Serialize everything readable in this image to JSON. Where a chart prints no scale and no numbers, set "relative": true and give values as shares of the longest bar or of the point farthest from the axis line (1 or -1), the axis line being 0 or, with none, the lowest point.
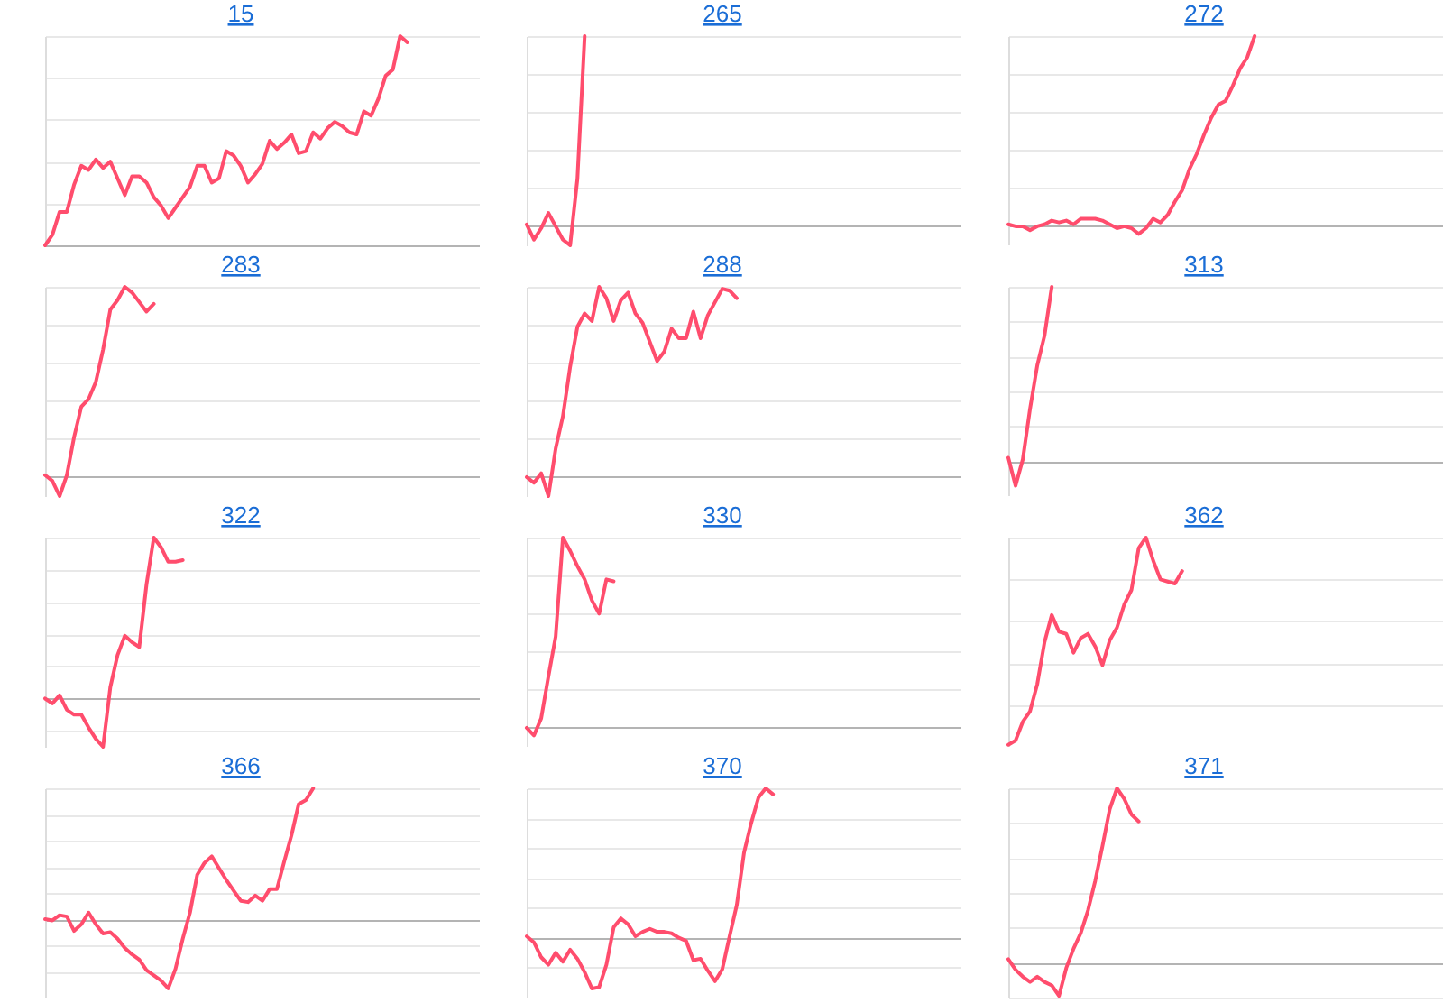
{
  "chart_data": [
    {
      "type": "line",
      "title": "15",
      "relative": true,
      "grid": "y",
      "tick_labels": false,
      "color": "#ff4d6d",
      "categories": [
        null,
        null,
        null,
        null,
        null,
        null,
        null,
        null,
        null,
        null,
        null,
        null,
        null,
        null,
        null,
        null,
        null,
        null,
        null,
        null,
        null,
        null,
        null,
        null,
        null,
        null,
        null,
        null,
        null,
        null,
        null,
        null,
        null,
        null,
        null,
        null,
        null,
        null,
        null,
        null,
        null,
        null,
        null,
        null,
        null,
        null,
        null,
        null,
        null,
        null,
        null,
        null,
        null,
        null,
        null,
        null,
        null,
        null,
        null,
        null,
        null
      ],
      "values": [
        0,
        0.05,
        0.16,
        0.16,
        0.29,
        0.38,
        0.36,
        0.41,
        0.37,
        0.4,
        0.32,
        0.24,
        0.33,
        0.33,
        0.3,
        0.23,
        0.19,
        0.13,
        0.18,
        0.23,
        0.28,
        0.38,
        0.38,
        0.3,
        0.32,
        0.45,
        0.43,
        0.38,
        0.3,
        0.34,
        0.39,
        0.5,
        0.46,
        0.49,
        0.53,
        0.44,
        0.45,
        0.54,
        0.51,
        0.56,
        0.59,
        0.57,
        0.54,
        0.53,
        0.64,
        0.62,
        0.7,
        0.81,
        0.84,
        1,
        0.97,
        null,
        null,
        null,
        null,
        null,
        null,
        null,
        null,
        null,
        null
      ]
    },
    {
      "type": "line",
      "title": "265",
      "relative": true,
      "grid": "y",
      "tick_labels": false,
      "color": "#ff4d6d",
      "categories": [
        null,
        null,
        null,
        null,
        null,
        null,
        null,
        null,
        null,
        null,
        null,
        null,
        null,
        null,
        null,
        null,
        null,
        null,
        null,
        null,
        null,
        null,
        null,
        null,
        null,
        null,
        null,
        null,
        null,
        null,
        null,
        null,
        null,
        null,
        null,
        null,
        null,
        null,
        null,
        null,
        null,
        null,
        null,
        null,
        null,
        null,
        null,
        null,
        null,
        null,
        null,
        null,
        null,
        null,
        null,
        null,
        null,
        null,
        null,
        null,
        null
      ],
      "values": [
        0.01,
        -0.07,
        -0.01,
        0.07,
        0,
        -0.07,
        -0.1,
        0.25,
        1,
        null,
        null,
        null,
        null,
        null,
        null,
        null,
        null,
        null,
        null,
        null,
        null,
        null,
        null,
        null,
        null,
        null,
        null,
        null,
        null,
        null,
        null,
        null,
        null,
        null,
        null,
        null,
        null,
        null,
        null,
        null,
        null,
        null,
        null,
        null,
        null,
        null,
        null,
        null,
        null,
        null,
        null,
        null,
        null,
        null,
        null,
        null,
        null,
        null,
        null,
        null,
        null
      ]
    },
    {
      "type": "line",
      "title": "272",
      "relative": true,
      "grid": "y",
      "tick_labels": false,
      "color": "#ff4d6d",
      "categories": [
        null,
        null,
        null,
        null,
        null,
        null,
        null,
        null,
        null,
        null,
        null,
        null,
        null,
        null,
        null,
        null,
        null,
        null,
        null,
        null,
        null,
        null,
        null,
        null,
        null,
        null,
        null,
        null,
        null,
        null,
        null,
        null,
        null,
        null,
        null,
        null,
        null,
        null,
        null,
        null,
        null,
        null,
        null,
        null,
        null,
        null,
        null,
        null,
        null,
        null,
        null,
        null,
        null,
        null,
        null,
        null,
        null,
        null,
        null,
        null,
        null
      ],
      "values": [
        0.01,
        0,
        0,
        -0.02,
        0,
        0.01,
        0.03,
        0.02,
        0.03,
        0.01,
        0.04,
        0.04,
        0.04,
        0.03,
        0.01,
        -0.01,
        0,
        -0.01,
        -0.04,
        -0.01,
        0.04,
        0.02,
        0.06,
        0.13,
        0.19,
        0.3,
        0.38,
        0.48,
        0.57,
        0.64,
        0.66,
        0.74,
        0.83,
        0.89,
        1,
        null,
        null,
        null,
        null,
        null,
        null,
        null,
        null,
        null,
        null,
        null,
        null,
        null,
        null,
        null,
        null,
        null,
        null,
        null,
        null,
        null,
        null,
        null,
        null,
        null,
        null
      ]
    },
    {
      "type": "line",
      "title": "283",
      "relative": true,
      "grid": "y",
      "tick_labels": false,
      "color": "#ff4d6d",
      "categories": [
        null,
        null,
        null,
        null,
        null,
        null,
        null,
        null,
        null,
        null,
        null,
        null,
        null,
        null,
        null,
        null,
        null,
        null,
        null,
        null,
        null,
        null,
        null,
        null,
        null,
        null,
        null,
        null,
        null,
        null,
        null,
        null,
        null,
        null,
        null,
        null,
        null,
        null,
        null,
        null,
        null,
        null,
        null,
        null,
        null,
        null,
        null,
        null,
        null,
        null,
        null,
        null,
        null,
        null,
        null,
        null,
        null,
        null,
        null,
        null,
        null
      ],
      "values": [
        0.01,
        -0.02,
        -0.1,
        0.01,
        0.21,
        0.37,
        0.41,
        0.5,
        0.67,
        0.88,
        0.93,
        1,
        0.97,
        0.92,
        0.87,
        0.91,
        null,
        null,
        null,
        null,
        null,
        null,
        null,
        null,
        null,
        null,
        null,
        null,
        null,
        null,
        null,
        null,
        null,
        null,
        null,
        null,
        null,
        null,
        null,
        null,
        null,
        null,
        null,
        null,
        null,
        null,
        null,
        null,
        null,
        null,
        null,
        null,
        null,
        null,
        null,
        null,
        null,
        null,
        null,
        null,
        null
      ]
    },
    {
      "type": "line",
      "title": "288",
      "relative": true,
      "grid": "y",
      "tick_labels": false,
      "color": "#ff4d6d",
      "categories": [
        null,
        null,
        null,
        null,
        null,
        null,
        null,
        null,
        null,
        null,
        null,
        null,
        null,
        null,
        null,
        null,
        null,
        null,
        null,
        null,
        null,
        null,
        null,
        null,
        null,
        null,
        null,
        null,
        null,
        null,
        null,
        null,
        null,
        null,
        null,
        null,
        null,
        null,
        null,
        null,
        null,
        null,
        null,
        null,
        null,
        null,
        null,
        null,
        null,
        null,
        null,
        null,
        null,
        null,
        null,
        null,
        null,
        null,
        null,
        null,
        null
      ],
      "values": [
        0,
        -0.03,
        0.02,
        -0.1,
        0.15,
        0.32,
        0.58,
        0.79,
        0.86,
        0.82,
        1,
        0.94,
        0.82,
        0.93,
        0.97,
        0.86,
        0.81,
        0.71,
        0.61,
        0.66,
        0.78,
        0.73,
        0.73,
        0.87,
        0.73,
        0.85,
        0.92,
        0.99,
        0.98,
        0.94,
        null,
        null,
        null,
        null,
        null,
        null,
        null,
        null,
        null,
        null,
        null,
        null,
        null,
        null,
        null,
        null,
        null,
        null,
        null,
        null,
        null,
        null,
        null,
        null,
        null,
        null,
        null,
        null,
        null,
        null,
        null
      ]
    },
    {
      "type": "line",
      "title": "313",
      "relative": true,
      "grid": "y",
      "tick_labels": false,
      "color": "#ff4d6d",
      "categories": [
        null,
        null,
        null,
        null,
        null,
        null,
        null,
        null,
        null,
        null,
        null,
        null,
        null,
        null,
        null,
        null,
        null,
        null,
        null,
        null,
        null,
        null,
        null,
        null,
        null,
        null,
        null,
        null,
        null,
        null,
        null,
        null,
        null,
        null,
        null,
        null,
        null,
        null,
        null,
        null,
        null,
        null,
        null,
        null,
        null,
        null,
        null,
        null,
        null,
        null,
        null,
        null,
        null,
        null,
        null,
        null,
        null,
        null,
        null,
        null,
        null
      ],
      "values": [
        0.02,
        -0.14,
        0.01,
        0.3,
        0.55,
        0.72,
        1,
        null,
        null,
        null,
        null,
        null,
        null,
        null,
        null,
        null,
        null,
        null,
        null,
        null,
        null,
        null,
        null,
        null,
        null,
        null,
        null,
        null,
        null,
        null,
        null,
        null,
        null,
        null,
        null,
        null,
        null,
        null,
        null,
        null,
        null,
        null,
        null,
        null,
        null,
        null,
        null,
        null,
        null,
        null,
        null,
        null,
        null,
        null,
        null,
        null,
        null,
        null,
        null,
        null,
        null
      ]
    },
    {
      "type": "line",
      "title": "322",
      "relative": true,
      "grid": "y",
      "tick_labels": false,
      "color": "#ff4d6d",
      "categories": [
        null,
        null,
        null,
        null,
        null,
        null,
        null,
        null,
        null,
        null,
        null,
        null,
        null,
        null,
        null,
        null,
        null,
        null,
        null,
        null,
        null,
        null,
        null,
        null,
        null,
        null,
        null,
        null,
        null,
        null,
        null,
        null,
        null,
        null,
        null,
        null,
        null,
        null,
        null,
        null,
        null,
        null,
        null,
        null,
        null,
        null,
        null,
        null,
        null,
        null,
        null,
        null,
        null,
        null,
        null,
        null,
        null,
        null,
        null,
        null,
        null
      ],
      "values": [
        0,
        -0.03,
        0.02,
        -0.07,
        -0.1,
        -0.1,
        -0.18,
        -0.25,
        -0.3,
        0.07,
        0.27,
        0.39,
        0.35,
        0.32,
        0.71,
        1,
        0.94,
        0.85,
        0.85,
        0.86,
        null,
        null,
        null,
        null,
        null,
        null,
        null,
        null,
        null,
        null,
        null,
        null,
        null,
        null,
        null,
        null,
        null,
        null,
        null,
        null,
        null,
        null,
        null,
        null,
        null,
        null,
        null,
        null,
        null,
        null,
        null,
        null,
        null,
        null,
        null,
        null,
        null,
        null,
        null,
        null,
        null
      ]
    },
    {
      "type": "line",
      "title": "330",
      "relative": true,
      "grid": "y",
      "tick_labels": false,
      "color": "#ff4d6d",
      "categories": [
        null,
        null,
        null,
        null,
        null,
        null,
        null,
        null,
        null,
        null,
        null,
        null,
        null,
        null,
        null,
        null,
        null,
        null,
        null,
        null,
        null,
        null,
        null,
        null,
        null,
        null,
        null,
        null,
        null,
        null,
        null,
        null,
        null,
        null,
        null,
        null,
        null,
        null,
        null,
        null,
        null,
        null,
        null,
        null,
        null,
        null,
        null,
        null,
        null,
        null,
        null,
        null,
        null,
        null,
        null,
        null,
        null,
        null,
        null,
        null,
        null
      ],
      "values": [
        0,
        -0.04,
        0.05,
        0.27,
        0.48,
        1,
        0.93,
        0.85,
        0.78,
        0.67,
        0.6,
        0.78,
        0.77,
        null,
        null,
        null,
        null,
        null,
        null,
        null,
        null,
        null,
        null,
        null,
        null,
        null,
        null,
        null,
        null,
        null,
        null,
        null,
        null,
        null,
        null,
        null,
        null,
        null,
        null,
        null,
        null,
        null,
        null,
        null,
        null,
        null,
        null,
        null,
        null,
        null,
        null,
        null,
        null,
        null,
        null,
        null,
        null,
        null,
        null,
        null,
        null
      ]
    },
    {
      "type": "line",
      "title": "362",
      "relative": true,
      "grid": "y",
      "tick_labels": false,
      "color": "#ff4d6d",
      "categories": [
        null,
        null,
        null,
        null,
        null,
        null,
        null,
        null,
        null,
        null,
        null,
        null,
        null,
        null,
        null,
        null,
        null,
        null,
        null,
        null,
        null,
        null,
        null,
        null,
        null,
        null,
        null,
        null,
        null,
        null,
        null,
        null,
        null,
        null,
        null,
        null,
        null,
        null,
        null,
        null,
        null,
        null,
        null,
        null,
        null,
        null,
        null,
        null,
        null,
        null,
        null,
        null,
        null,
        null,
        null,
        null,
        null,
        null,
        null,
        null,
        null
      ],
      "values": [
        0.01,
        0.03,
        0.12,
        0.17,
        0.3,
        0.5,
        0.63,
        0.55,
        0.54,
        0.45,
        0.52,
        0.54,
        0.48,
        0.39,
        0.51,
        0.57,
        0.68,
        0.75,
        0.95,
        1,
        0.89,
        0.8,
        0.79,
        0.78,
        0.84,
        null,
        null,
        null,
        null,
        null,
        null,
        null,
        null,
        null,
        null,
        null,
        null,
        null,
        null,
        null,
        null,
        null,
        null,
        null,
        null,
        null,
        null,
        null,
        null,
        null,
        null,
        null,
        null,
        null,
        null,
        null,
        null,
        null,
        null,
        null,
        null
      ]
    },
    {
      "type": "line",
      "title": "366",
      "relative": true,
      "grid": "y",
      "tick_labels": false,
      "color": "#ff4d6d",
      "categories": [
        null,
        null,
        null,
        null,
        null,
        null,
        null,
        null,
        null,
        null,
        null,
        null,
        null,
        null,
        null,
        null,
        null,
        null,
        null,
        null,
        null,
        null,
        null,
        null,
        null,
        null,
        null,
        null,
        null,
        null,
        null,
        null,
        null,
        null,
        null,
        null,
        null,
        null,
        null,
        null,
        null,
        null,
        null,
        null,
        null,
        null,
        null,
        null,
        null,
        null,
        null,
        null,
        null,
        null,
        null,
        null,
        null,
        null,
        null,
        null,
        null
      ],
      "values": [
        0,
        -0.01,
        0.03,
        0.02,
        -0.09,
        -0.04,
        0.05,
        -0.04,
        -0.11,
        -0.1,
        -0.15,
        -0.22,
        -0.27,
        -0.31,
        -0.39,
        -0.43,
        -0.47,
        -0.53,
        -0.38,
        -0.15,
        0.05,
        0.34,
        0.43,
        0.48,
        0.39,
        0.3,
        0.22,
        0.14,
        0.13,
        0.18,
        0.14,
        0.23,
        0.23,
        0.44,
        0.64,
        0.88,
        0.91,
        1,
        null,
        null,
        null,
        null,
        null,
        null,
        null,
        null,
        null,
        null,
        null,
        null,
        null,
        null,
        null,
        null,
        null,
        null,
        null,
        null,
        null,
        null,
        null
      ]
    },
    {
      "type": "line",
      "title": "370",
      "relative": true,
      "grid": "y",
      "tick_labels": false,
      "color": "#ff4d6d",
      "categories": [
        null,
        null,
        null,
        null,
        null,
        null,
        null,
        null,
        null,
        null,
        null,
        null,
        null,
        null,
        null,
        null,
        null,
        null,
        null,
        null,
        null,
        null,
        null,
        null,
        null,
        null,
        null,
        null,
        null,
        null,
        null,
        null,
        null,
        null,
        null,
        null,
        null,
        null,
        null,
        null,
        null,
        null,
        null,
        null,
        null,
        null,
        null,
        null,
        null,
        null,
        null,
        null,
        null,
        null,
        null,
        null,
        null,
        null,
        null,
        null,
        null
      ],
      "values": [
        0.01,
        -0.03,
        -0.13,
        -0.18,
        -0.1,
        -0.16,
        -0.08,
        -0.14,
        -0.23,
        -0.34,
        -0.33,
        -0.18,
        0.07,
        0.13,
        0.09,
        0.01,
        0.04,
        0.06,
        0.04,
        0.04,
        0.03,
        0,
        -0.02,
        -0.15,
        -0.14,
        -0.22,
        -0.29,
        -0.21,
        0.01,
        0.22,
        0.57,
        0.77,
        0.94,
        1,
        0.96,
        null,
        null,
        null,
        null,
        null,
        null,
        null,
        null,
        null,
        null,
        null,
        null,
        null,
        null,
        null,
        null,
        null,
        null,
        null,
        null,
        null,
        null,
        null,
        null,
        null,
        null
      ]
    },
    {
      "type": "line",
      "title": "371",
      "relative": true,
      "grid": "y",
      "tick_labels": false,
      "color": "#ff4d6d",
      "categories": [
        null,
        null,
        null,
        null,
        null,
        null,
        null,
        null,
        null,
        null,
        null,
        null,
        null,
        null,
        null,
        null,
        null,
        null,
        null,
        null,
        null,
        null,
        null,
        null,
        null,
        null,
        null,
        null,
        null,
        null,
        null,
        null,
        null,
        null,
        null,
        null,
        null,
        null,
        null,
        null,
        null,
        null,
        null,
        null,
        null,
        null,
        null,
        null,
        null,
        null,
        null,
        null,
        null,
        null,
        null,
        null,
        null,
        null,
        null,
        null,
        null
      ],
      "values": [
        0.02,
        -0.04,
        -0.08,
        -0.11,
        -0.08,
        -0.11,
        -0.13,
        -0.19,
        -0.03,
        0.08,
        0.17,
        0.3,
        0.47,
        0.67,
        0.88,
        1,
        0.94,
        0.85,
        0.81,
        null,
        null,
        null,
        null,
        null,
        null,
        null,
        null,
        null,
        null,
        null,
        null,
        null,
        null,
        null,
        null,
        null,
        null,
        null,
        null,
        null,
        null,
        null,
        null,
        null,
        null,
        null,
        null,
        null,
        null,
        null,
        null,
        null,
        null,
        null,
        null,
        null,
        null,
        null,
        null,
        null,
        null
      ]
    }
  ]
}
